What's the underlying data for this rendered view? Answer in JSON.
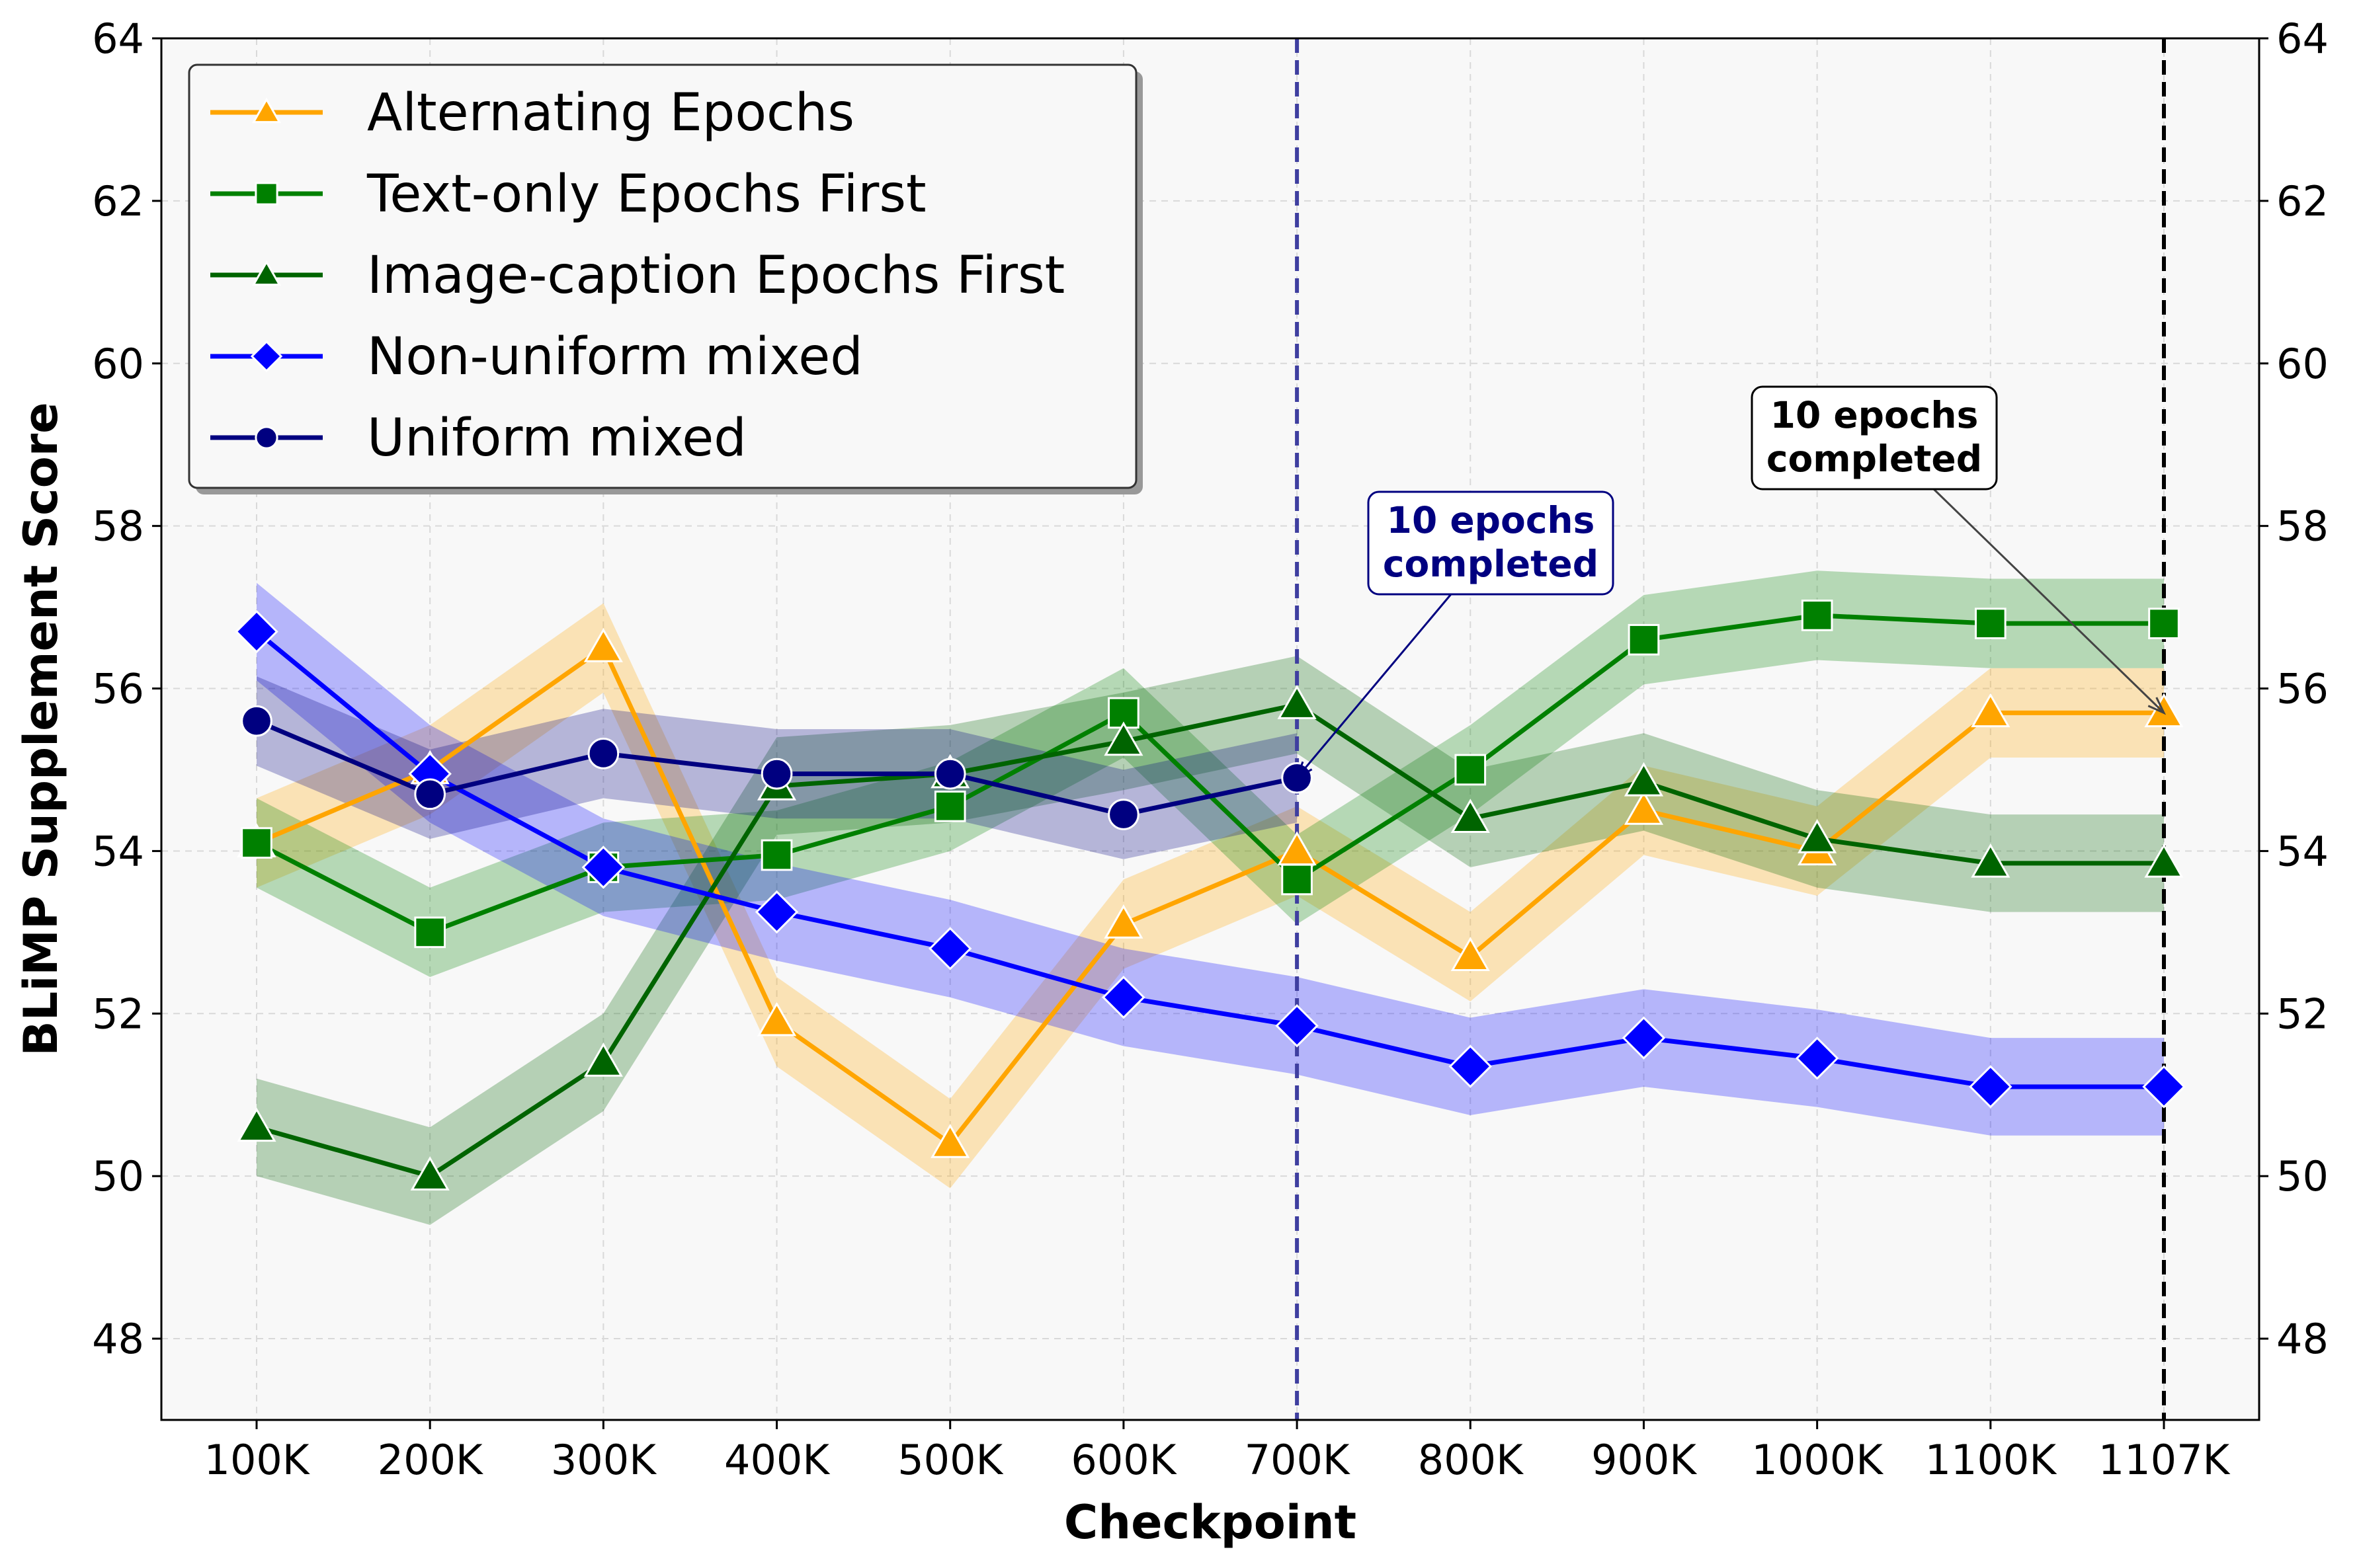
{
  "chart_data": {
    "type": "line",
    "title": "",
    "xlabel": "Checkpoint",
    "ylabel": "BLiMP Supplement Score",
    "categories": [
      "100K",
      "200K",
      "300K",
      "400K",
      "500K",
      "600K",
      "700K",
      "800K",
      "900K",
      "1000K",
      "1100K",
      "1107K"
    ],
    "ylim": [
      47,
      64
    ],
    "yticks": [
      48,
      50,
      52,
      54,
      56,
      58,
      60,
      62,
      64
    ],
    "grid": true,
    "legend_position": "top-left",
    "right_axis_mirrored": true,
    "series": [
      {
        "name": "Alternating Epochs",
        "color": "#FFA500",
        "marker": "triangle",
        "values": [
          54.1,
          55.0,
          56.5,
          51.9,
          50.4,
          53.1,
          54.0,
          52.7,
          54.5,
          54.0,
          55.7,
          55.7
        ],
        "band_half_width": 0.55
      },
      {
        "name": "Text-only Epochs First",
        "color": "#008000",
        "marker": "square",
        "values": [
          54.1,
          53.0,
          53.8,
          53.95,
          54.55,
          55.7,
          53.65,
          55.0,
          56.6,
          56.9,
          56.8,
          56.8
        ],
        "band_half_width": 0.55
      },
      {
        "name": "Image-caption Epochs First",
        "color": "#006400",
        "marker": "triangle",
        "values": [
          50.6,
          50.0,
          51.4,
          54.8,
          54.95,
          55.35,
          55.8,
          54.4,
          54.85,
          54.15,
          53.85,
          53.85
        ],
        "band_half_width": 0.6
      },
      {
        "name": "Non-uniform mixed",
        "color": "#0000FF",
        "marker": "diamond",
        "values": [
          56.7,
          54.95,
          53.8,
          53.25,
          52.8,
          52.2,
          51.85,
          51.35,
          51.7,
          51.45,
          51.1,
          51.1
        ],
        "band_half_width": 0.6
      },
      {
        "name": "Uniform mixed",
        "color": "#000080",
        "marker": "circle",
        "values": [
          55.6,
          54.7,
          55.2,
          54.95,
          54.95,
          54.45,
          54.9,
          null,
          null,
          null,
          null,
          null
        ],
        "band_half_width": 0.55
      }
    ],
    "vlines": [
      {
        "x": "700K",
        "color": "#3F3FA0"
      },
      {
        "x": "1107K",
        "color": "#000000"
      }
    ],
    "annotations": [
      {
        "id": "a1",
        "lines": [
          "10 epochs",
          "completed"
        ],
        "target_x": "700K",
        "target_y": 54.9,
        "text_color": "#000080",
        "border_color": "#000080"
      },
      {
        "id": "a2",
        "lines": [
          "10 epochs",
          "completed"
        ],
        "target_x": "1107K",
        "target_y": 55.7,
        "text_color": "#000000",
        "border_color": "#000000"
      }
    ]
  }
}
